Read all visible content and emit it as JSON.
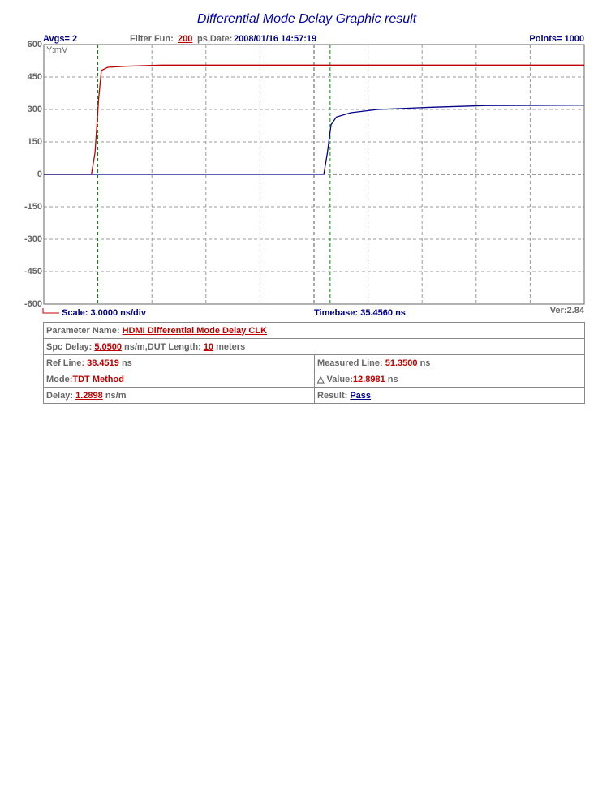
{
  "chart_data": {
    "type": "line",
    "title": "Differential Mode Delay Graphic result",
    "header": {
      "avgs": "Avgs= 2",
      "filter_label": "Filter Fun:",
      "filter_value": "200",
      "filter_unit": "ps,Date:",
      "date": "2008/01/16 14:57:19",
      "points": "Points= 1000"
    },
    "y_label": "Y:mV",
    "footer": {
      "scale": "Scale: 3.0000 ns/div",
      "timebase": "Timebase: 35.4560 ns",
      "version": "Ver:2.84"
    },
    "xlim": [
      35.456,
      65.456
    ],
    "ylim": [
      -600,
      600
    ],
    "yticks": [
      600,
      450,
      300,
      150,
      0,
      -150,
      -300,
      -450,
      -600
    ],
    "grid": true,
    "series": [
      {
        "color": "#c00000",
        "x": [
          35.456,
          38.1,
          38.3,
          38.5,
          38.65,
          39.0,
          40.0,
          42.0,
          50.0,
          65.456
        ],
        "values": [
          0,
          0,
          100,
          350,
          480,
          495,
          500,
          505,
          505,
          505
        ]
      },
      {
        "color": "#00008b",
        "x": [
          35.456,
          51.0,
          51.2,
          51.4,
          51.7,
          52.5,
          54.0,
          57.0,
          60.0,
          65.456
        ],
        "values": [
          0,
          0,
          100,
          230,
          265,
          285,
          300,
          310,
          318,
          320
        ]
      }
    ]
  },
  "report": {
    "parameter": {
      "label": "Parameter Name:",
      "value": "HDMI Differential Mode Delay CLK"
    },
    "spc": {
      "label": "Spc Delay:",
      "value": "5.0500",
      "unit": "ns/m,DUT Length:",
      "length": "10",
      "length_unit": "meters"
    },
    "ref_line": {
      "label": "Ref Line:",
      "value": 38.4519,
      "unit": "ns"
    },
    "measured_line": {
      "label": "Measured Line:",
      "value": 51.35,
      "value_label": "51.3500",
      "unit": "ns"
    },
    "mode": {
      "label": "Mode:",
      "value": "TDT Method"
    },
    "delta": {
      "label": "△ Value:",
      "value": "12.8981",
      "unit": "ns"
    },
    "delay": {
      "label": "Delay:",
      "value": "1.2898",
      "unit": "ns/m"
    },
    "result": {
      "label": "Result:",
      "value": "Pass"
    }
  }
}
